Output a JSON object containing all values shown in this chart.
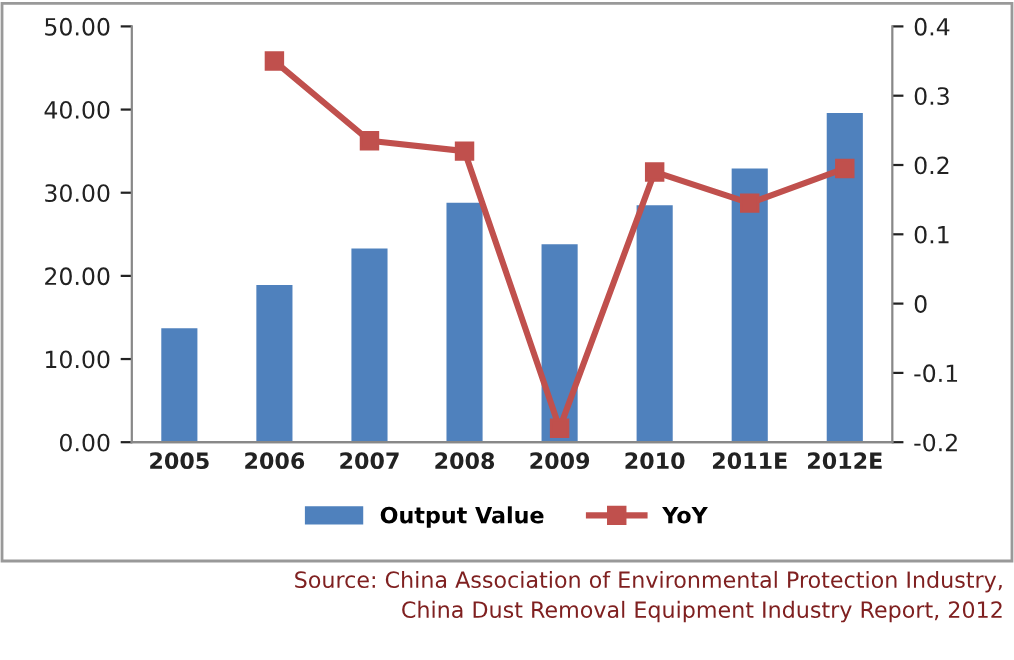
{
  "chart_data": {
    "type": "bar",
    "categories": [
      "2005",
      "2006",
      "2007",
      "2008",
      "2009",
      "2010",
      "2011E",
      "2012E"
    ],
    "series": [
      {
        "name": "Output Value",
        "color": "#4f81bd",
        "values": [
          13.7,
          18.9,
          23.3,
          28.8,
          23.8,
          28.5,
          32.9,
          39.6
        ]
      },
      {
        "name": "YoY",
        "type": "line",
        "axis": "y2",
        "color": "#c0504d",
        "marker": "square",
        "values": [
          null,
          0.35,
          0.235,
          0.22,
          -0.18,
          0.19,
          0.145,
          0.195
        ]
      }
    ],
    "ylim": [
      0,
      50
    ],
    "yticks": [
      {
        "value": 0,
        "label": "0.00"
      },
      {
        "value": 10,
        "label": "10.00"
      },
      {
        "value": 20,
        "label": "20.00"
      },
      {
        "value": 30,
        "label": "30.00"
      },
      {
        "value": 40,
        "label": "40.00"
      },
      {
        "value": 50,
        "label": "50.00"
      }
    ],
    "y2lim": [
      -0.2,
      0.4
    ],
    "y2ticks": [
      -0.2,
      -0.1,
      0,
      0.1,
      0.2,
      0.3,
      0.4
    ],
    "grid": false,
    "legend": "bottom",
    "annotations": [
      "Source: China Association of Environmental Protection Industry,\nChina Dust Removal Equipment Industry Report, 2012"
    ]
  }
}
